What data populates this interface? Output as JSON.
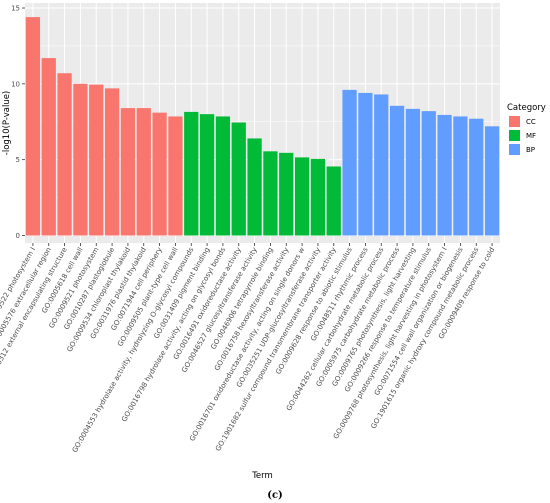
{
  "chart_data": {
    "type": "bar",
    "xlabel": "Term",
    "ylabel": "-log10(P-value)",
    "ylim": [
      0,
      15
    ],
    "yticks": [
      0,
      5,
      10,
      15
    ],
    "grid": true,
    "legend": {
      "title": "Category",
      "position": "right",
      "entries": [
        {
          "name": "CC",
          "color": "#F8766D"
        },
        {
          "name": "MF",
          "color": "#00BA38"
        },
        {
          "name": "BP",
          "color": "#619CFF"
        }
      ]
    },
    "caption": "(c)",
    "categories": [
      "GO:0009522 photosystem I",
      "GO:0005576 extracellular region",
      "GO:0030312 external encapsulating structure",
      "GO:0005618 cell wall",
      "GO:0009521 photosystem",
      "GO:0010287 plastoglobule",
      "GO:0009534 chloroplast thylakoid",
      "GO:0031976 plastid thylakoid",
      "GO:0071944 cell periphery",
      "GO:0009505 plant-type cell wall",
      "GO:0004553 hydrolase activity, hydrolyzing O-glycosyl compounds",
      "GO:0031409 pigment binding",
      "GO:0016798 hydrolase activity, acting on glycosyl bonds",
      "GO:0016491 oxidoreductase activity",
      "GO:0046527 glucosyltransferase activity",
      "GO:0046906 tetrapyrrole binding",
      "GO:0016758 hexosyltransferase activity",
      "GO:0016701 oxidoreductase activity, acting on single donors w",
      "GO:0035251 UDP-glucosyltransferase activity",
      "GO:1901682 sulfur compound transmembrane transporter activity",
      "GO:0009628 response to abiotic stimulus",
      "GO:0048511 rhythmic process",
      "GO:0044262 cellular carbohydrate metabolic process",
      "GO:0005975 carbohydrate metabolic process",
      "GO:0009765 photosynthesis, light harvesting",
      "GO:0009266 response to temperature stimulus",
      "GO:0009768 photosynthesis, light harvesting in photosystem I",
      "GO:0071554 cell wall organization or biogenesis",
      "GO:1901615 organic hydroxy compound metabolic process",
      "GO:0009409 response to cold"
    ],
    "values": [
      14.4,
      11.7,
      10.7,
      10.0,
      9.95,
      9.7,
      8.4,
      8.4,
      8.1,
      7.85,
      8.15,
      8.0,
      7.85,
      7.45,
      6.4,
      5.55,
      5.45,
      5.15,
      5.05,
      4.55,
      9.6,
      9.4,
      9.3,
      8.55,
      8.35,
      8.2,
      7.95,
      7.85,
      7.7,
      7.2
    ],
    "groups": [
      "CC",
      "CC",
      "CC",
      "CC",
      "CC",
      "CC",
      "CC",
      "CC",
      "CC",
      "CC",
      "MF",
      "MF",
      "MF",
      "MF",
      "MF",
      "MF",
      "MF",
      "MF",
      "MF",
      "MF",
      "BP",
      "BP",
      "BP",
      "BP",
      "BP",
      "BP",
      "BP",
      "BP",
      "BP",
      "BP"
    ]
  }
}
